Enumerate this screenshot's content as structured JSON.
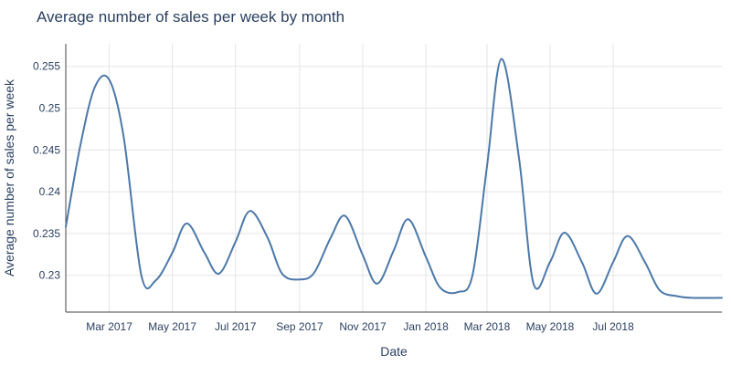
{
  "chart_data": {
    "type": "line",
    "title": "Average number of sales per week by month",
    "xlabel": "Date",
    "ylabel": "Average number of sales per week",
    "x_ticks": [
      "Mar 2017",
      "May 2017",
      "Jul 2017",
      "Sep 2017",
      "Nov 2017",
      "Jan 2018",
      "Mar 2018",
      "May 2018",
      "Jul 2018"
    ],
    "y_ticks": [
      "0.23",
      "0.235",
      "0.24",
      "0.245",
      "0.25",
      "0.255"
    ],
    "xlim": [
      "2017-01-18",
      "2018-10-14"
    ],
    "ylim": [
      0.2256,
      0.2577
    ],
    "grid": true,
    "legend": "none",
    "color": "#4c78a8",
    "smooth": true,
    "x": [
      "2017-01-18",
      "2017-02-01",
      "2017-02-15",
      "2017-03-01",
      "2017-03-15",
      "2017-04-01",
      "2017-04-15",
      "2017-05-01",
      "2017-05-15",
      "2017-06-01",
      "2017-06-15",
      "2017-07-01",
      "2017-07-15",
      "2017-08-01",
      "2017-08-15",
      "2017-09-01",
      "2017-09-15",
      "2017-10-01",
      "2017-10-15",
      "2017-11-01",
      "2017-11-15",
      "2017-12-01",
      "2017-12-15",
      "2018-01-01",
      "2018-01-15",
      "2018-02-01",
      "2018-02-15",
      "2018-03-01",
      "2018-03-15",
      "2018-04-01",
      "2018-04-15",
      "2018-05-01",
      "2018-05-15",
      "2018-06-01",
      "2018-06-15",
      "2018-07-01",
      "2018-07-15",
      "2018-08-01",
      "2018-08-15",
      "2018-09-01",
      "2018-09-15",
      "2018-10-14"
    ],
    "y": [
      0.2358,
      0.2455,
      0.2525,
      0.2534,
      0.2465,
      0.23,
      0.2294,
      0.2327,
      0.2362,
      0.2327,
      0.2302,
      0.234,
      0.2377,
      0.2345,
      0.2302,
      0.2295,
      0.2303,
      0.2345,
      0.2371,
      0.2324,
      0.229,
      0.233,
      0.2367,
      0.2322,
      0.2285,
      0.228,
      0.23,
      0.243,
      0.2559,
      0.244,
      0.229,
      0.2316,
      0.2351,
      0.2315,
      0.2278,
      0.2316,
      0.2347,
      0.2315,
      0.2282,
      0.2275,
      0.2273,
      0.2273
    ]
  }
}
